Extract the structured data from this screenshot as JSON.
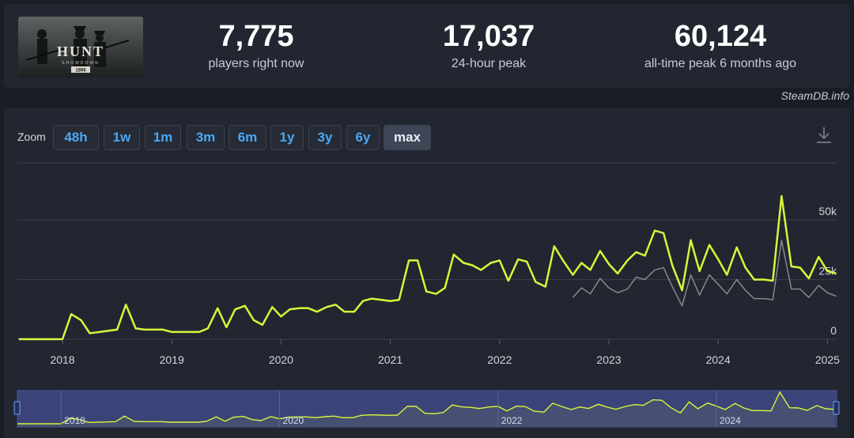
{
  "stats": {
    "current": {
      "value": "7,775",
      "label": "players right now"
    },
    "peak24": {
      "value": "17,037",
      "label": "24-hour peak"
    },
    "alltime": {
      "value": "60,124",
      "label": "all-time peak 6 months ago"
    }
  },
  "game_logo": {
    "title": "HUNT",
    "subtitle": "SHOWDOWN",
    "badge": "1896"
  },
  "watermark": "SteamDB.info",
  "zoom": {
    "label": "Zoom",
    "options": [
      "48h",
      "1w",
      "1m",
      "3m",
      "6m",
      "1y",
      "3y",
      "6y",
      "max"
    ],
    "selected": "max"
  },
  "icons": {
    "download": "download-icon"
  },
  "colors": {
    "players_line": "#d9f53a",
    "secondary_line": "#8a8f96",
    "accent_button": "#4aa8f5",
    "navigator_bg": "#3b4478"
  },
  "chart_data": {
    "type": "line",
    "x_unit": "year",
    "xlim": [
      2017.6,
      2025.1
    ],
    "ylim": [
      0,
      60000
    ],
    "y_ticks": [
      0,
      25000,
      50000
    ],
    "y_tick_labels": [
      "0",
      "25k",
      "50k"
    ],
    "x_ticks": [
      2018,
      2019,
      2020,
      2021,
      2022,
      2023,
      2024,
      2025
    ],
    "x_tick_labels": [
      "2018",
      "2019",
      "2020",
      "2021",
      "2022",
      "2023",
      "2024",
      "2025"
    ],
    "navigator_tick_labels": [
      "2018",
      "2020",
      "2022",
      "2024"
    ],
    "grid": true,
    "series": [
      {
        "color": "#d9f53a",
        "points": [
          [
            2017.6,
            0
          ],
          [
            2017.9,
            0
          ],
          [
            2018.0,
            0
          ],
          [
            2018.08,
            10500
          ],
          [
            2018.17,
            8000
          ],
          [
            2018.25,
            2500
          ],
          [
            2018.42,
            3500
          ],
          [
            2018.5,
            4000
          ],
          [
            2018.58,
            14500
          ],
          [
            2018.67,
            4500
          ],
          [
            2018.75,
            4000
          ],
          [
            2018.92,
            4000
          ],
          [
            2019.0,
            3000
          ],
          [
            2019.08,
            3000
          ],
          [
            2019.25,
            3000
          ],
          [
            2019.33,
            4500
          ],
          [
            2019.42,
            13000
          ],
          [
            2019.5,
            5000
          ],
          [
            2019.58,
            12500
          ],
          [
            2019.67,
            14000
          ],
          [
            2019.75,
            8000
          ],
          [
            2019.83,
            6000
          ],
          [
            2019.92,
            13500
          ],
          [
            2020.0,
            9500
          ],
          [
            2020.08,
            12500
          ],
          [
            2020.17,
            13000
          ],
          [
            2020.25,
            13000
          ],
          [
            2020.33,
            11500
          ],
          [
            2020.42,
            13500
          ],
          [
            2020.5,
            14500
          ],
          [
            2020.58,
            11500
          ],
          [
            2020.67,
            11500
          ],
          [
            2020.75,
            16000
          ],
          [
            2020.83,
            17000
          ],
          [
            2020.92,
            16500
          ],
          [
            2021.0,
            16000
          ],
          [
            2021.08,
            16500
          ],
          [
            2021.17,
            33000
          ],
          [
            2021.25,
            33000
          ],
          [
            2021.33,
            20000
          ],
          [
            2021.42,
            19000
          ],
          [
            2021.5,
            21500
          ],
          [
            2021.58,
            35500
          ],
          [
            2021.67,
            32000
          ],
          [
            2021.75,
            31000
          ],
          [
            2021.83,
            29000
          ],
          [
            2021.92,
            32000
          ],
          [
            2022.0,
            33000
          ],
          [
            2022.08,
            24500
          ],
          [
            2022.17,
            33500
          ],
          [
            2022.25,
            32500
          ],
          [
            2022.33,
            24000
          ],
          [
            2022.42,
            22000
          ],
          [
            2022.5,
            39000
          ],
          [
            2022.58,
            33000
          ],
          [
            2022.67,
            27000
          ],
          [
            2022.75,
            32000
          ],
          [
            2022.83,
            29000
          ],
          [
            2022.92,
            37000
          ],
          [
            2023.0,
            31500
          ],
          [
            2023.08,
            27500
          ],
          [
            2023.17,
            33000
          ],
          [
            2023.25,
            36500
          ],
          [
            2023.33,
            35000
          ],
          [
            2023.42,
            45500
          ],
          [
            2023.5,
            44500
          ],
          [
            2023.58,
            31000
          ],
          [
            2023.67,
            20500
          ],
          [
            2023.75,
            41500
          ],
          [
            2023.83,
            28500
          ],
          [
            2023.92,
            39500
          ],
          [
            2024.0,
            33500
          ],
          [
            2024.08,
            27000
          ],
          [
            2024.17,
            38500
          ],
          [
            2024.25,
            30000
          ],
          [
            2024.33,
            25000
          ],
          [
            2024.42,
            25000
          ],
          [
            2024.5,
            24500
          ],
          [
            2024.58,
            60000
          ],
          [
            2024.67,
            30500
          ],
          [
            2024.75,
            30000
          ],
          [
            2024.83,
            25500
          ],
          [
            2024.92,
            34500
          ],
          [
            2025.0,
            28500
          ],
          [
            2025.08,
            27500
          ]
        ]
      },
      {
        "color": "#8a8f96",
        "points": [
          [
            2022.67,
            17500
          ],
          [
            2022.75,
            21500
          ],
          [
            2022.83,
            19000
          ],
          [
            2022.92,
            25500
          ],
          [
            2023.0,
            21500
          ],
          [
            2023.08,
            19500
          ],
          [
            2023.17,
            21000
          ],
          [
            2023.25,
            26000
          ],
          [
            2023.33,
            25000
          ],
          [
            2023.42,
            29000
          ],
          [
            2023.5,
            30000
          ],
          [
            2023.58,
            22000
          ],
          [
            2023.67,
            14000
          ],
          [
            2023.75,
            27000
          ],
          [
            2023.83,
            18500
          ],
          [
            2023.92,
            27000
          ],
          [
            2024.0,
            23000
          ],
          [
            2024.08,
            19000
          ],
          [
            2024.17,
            25000
          ],
          [
            2024.25,
            20500
          ],
          [
            2024.33,
            17000
          ],
          [
            2024.42,
            17000
          ],
          [
            2024.5,
            16500
          ],
          [
            2024.58,
            41500
          ],
          [
            2024.67,
            21000
          ],
          [
            2024.75,
            21000
          ],
          [
            2024.83,
            17500
          ],
          [
            2024.92,
            22500
          ],
          [
            2025.0,
            19500
          ],
          [
            2025.08,
            18000
          ]
        ]
      }
    ]
  }
}
